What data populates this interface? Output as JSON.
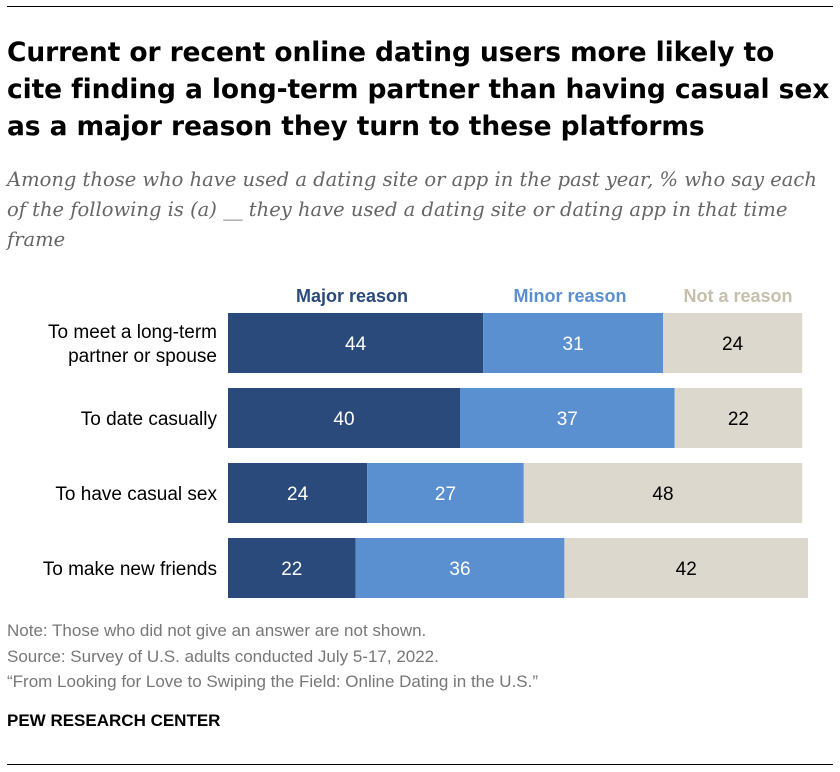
{
  "title": "Current or recent online dating users more likely to cite finding a long-term partner than having casual sex as a major reason they turn to these platforms",
  "subtitle": "Among those who have used a dating site or app in the past year, % who say each of the following is (a) __ they have used a dating site or dating app in that time frame",
  "chart_data": {
    "type": "bar",
    "orientation": "horizontal",
    "stacked": true,
    "categories": [
      [
        "To meet a long-term",
        "partner or spouse"
      ],
      [
        "To date casually"
      ],
      [
        "To have casual sex"
      ],
      [
        "To make new friends"
      ]
    ],
    "series": [
      {
        "name": "Major reason",
        "color": "#2a4a7c",
        "label_color": "#ffffff",
        "values": [
          44,
          40,
          24,
          22
        ]
      },
      {
        "name": "Minor reason",
        "color": "#5a8fd0",
        "label_color": "#ffffff",
        "values": [
          31,
          37,
          27,
          36
        ]
      },
      {
        "name": "Not a reason",
        "color": "#dcd8cd",
        "label_color": "#000000",
        "values": [
          24,
          22,
          48,
          42
        ]
      }
    ],
    "legend_colors": [
      "#2a4a7c",
      "#5a8fd0",
      "#c6bfab"
    ],
    "xlim": [
      0,
      100
    ],
    "legend_position": "top",
    "xlabel": "",
    "ylabel": ""
  },
  "notes": {
    "note": "Note: Those who did not give an answer are not shown.",
    "source": "Source: Survey of U.S. adults conducted July 5-17, 2022.",
    "report": "“From Looking for Love to Swiping the Field: Online Dating in the U.S.”"
  },
  "brand": "PEW RESEARCH CENTER"
}
